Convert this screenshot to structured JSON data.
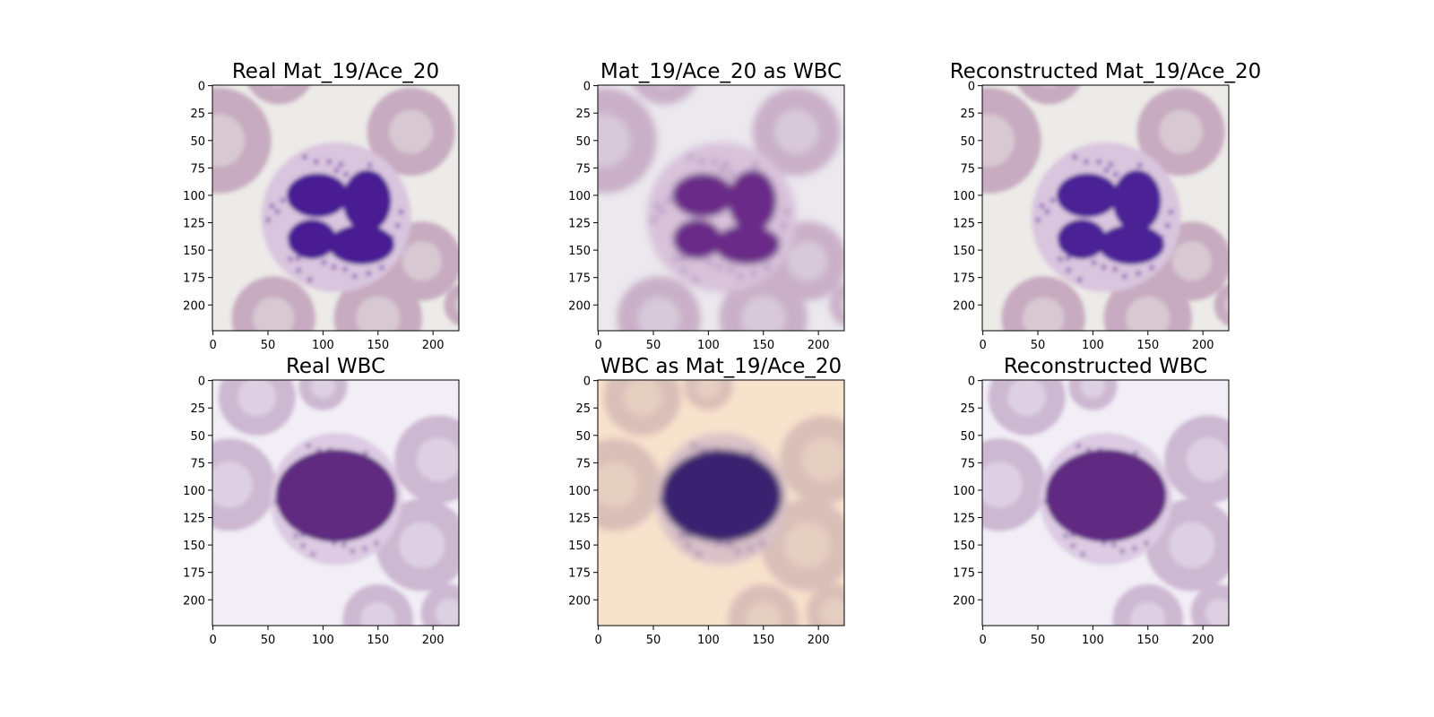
{
  "chart_data": [
    {
      "type": "image",
      "title": "Real Mat_19/Ace_20",
      "xlim": [
        -0.5,
        223.5
      ],
      "ylim": [
        223.5,
        -0.5
      ],
      "xticks": [
        0,
        50,
        100,
        150,
        200
      ],
      "yticks": [
        0,
        25,
        50,
        75,
        100,
        125,
        150,
        175,
        200
      ]
    },
    {
      "type": "image",
      "title": "Mat_19/Ace_20 as WBC",
      "xlim": [
        -0.5,
        223.5
      ],
      "ylim": [
        223.5,
        -0.5
      ],
      "xticks": [
        0,
        50,
        100,
        150,
        200
      ],
      "yticks": [
        0,
        25,
        50,
        75,
        100,
        125,
        150,
        175,
        200
      ]
    },
    {
      "type": "image",
      "title": "Reconstructed Mat_19/Ace_20",
      "xlim": [
        -0.5,
        223.5
      ],
      "ylim": [
        223.5,
        -0.5
      ],
      "xticks": [
        0,
        50,
        100,
        150,
        200
      ],
      "yticks": [
        0,
        25,
        50,
        75,
        100,
        125,
        150,
        175,
        200
      ]
    },
    {
      "type": "image",
      "title": "Real WBC",
      "xlim": [
        -0.5,
        223.5
      ],
      "ylim": [
        223.5,
        -0.5
      ],
      "xticks": [
        0,
        50,
        100,
        150,
        200
      ],
      "yticks": [
        0,
        25,
        50,
        75,
        100,
        125,
        150,
        175,
        200
      ]
    },
    {
      "type": "image",
      "title": "WBC as Mat_19/Ace_20",
      "xlim": [
        -0.5,
        223.5
      ],
      "ylim": [
        223.5,
        -0.5
      ],
      "xticks": [
        0,
        50,
        100,
        150,
        200
      ],
      "yticks": [
        0,
        25,
        50,
        75,
        100,
        125,
        150,
        175,
        200
      ]
    },
    {
      "type": "image",
      "title": "Reconstructed WBC",
      "xlim": [
        -0.5,
        223.5
      ],
      "ylim": [
        223.5,
        -0.5
      ],
      "xticks": [
        0,
        50,
        100,
        150,
        200
      ],
      "yticks": [
        0,
        25,
        50,
        75,
        100,
        125,
        150,
        175,
        200
      ]
    }
  ]
}
